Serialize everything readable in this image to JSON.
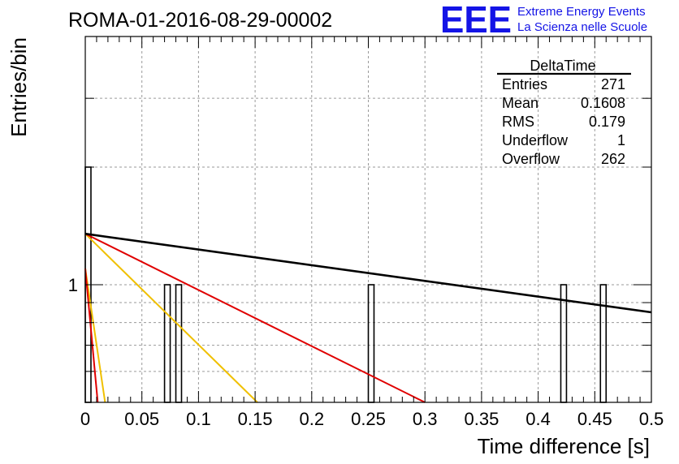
{
  "header": {
    "title": "ROMA-01-2016-08-29-00002",
    "logo_text": "EEE",
    "logo_line1": "Extreme Energy Events",
    "logo_line2": "La Scienza nelle Scuole"
  },
  "stats_box": {
    "title": "DeltaTime",
    "rows": [
      {
        "label": "Entries",
        "value": "271"
      },
      {
        "label": "Mean",
        "value": "0.1608"
      },
      {
        "label": "RMS",
        "value": "0.179"
      },
      {
        "label": "Underflow",
        "value": "1"
      },
      {
        "label": "Overflow",
        "value": "262"
      }
    ]
  },
  "colors": {
    "hist": "#000000",
    "fit_black": "#000000",
    "fit_red": "#e00000",
    "fit_yellow": "#f0c000",
    "grid": "#9a9a9a"
  },
  "chart_data": {
    "type": "bar",
    "title": "ROMA-01-2016-08-29-00002",
    "xlabel": "Time difference [s]",
    "ylabel": "Entries/bin",
    "xlim": [
      0,
      0.5
    ],
    "ylim": [
      0.5,
      4
    ],
    "log_y": true,
    "grid": true,
    "bin_width": 0.005,
    "x_ticks": [
      "0",
      "0.05",
      "0.1",
      "0.15",
      "0.2",
      "0.25",
      "0.3",
      "0.35",
      "0.4",
      "0.45",
      "0.5"
    ],
    "y_ticks": [
      "1"
    ],
    "bins": [
      {
        "x": 0.0,
        "value": 2
      },
      {
        "x": 0.07,
        "value": 1
      },
      {
        "x": 0.08,
        "value": 1
      },
      {
        "x": 0.25,
        "value": 1
      },
      {
        "x": 0.42,
        "value": 1
      },
      {
        "x": 0.455,
        "value": 1
      }
    ],
    "fits": [
      {
        "color": "black",
        "points": [
          [
            0.0,
            1.35
          ],
          [
            0.5,
            0.85
          ]
        ]
      },
      {
        "color": "red",
        "points": [
          [
            0.0,
            1.35
          ],
          [
            0.3,
            0.5
          ]
        ]
      },
      {
        "color": "yellow",
        "points": [
          [
            0.0,
            1.35
          ],
          [
            0.152,
            0.5
          ]
        ]
      },
      {
        "color": "yellow",
        "points": [
          [
            0.0,
            1.1
          ],
          [
            0.0175,
            0.5
          ]
        ]
      },
      {
        "color": "red",
        "points": [
          [
            0.0,
            1.1
          ],
          [
            0.011,
            0.5
          ]
        ]
      }
    ]
  }
}
